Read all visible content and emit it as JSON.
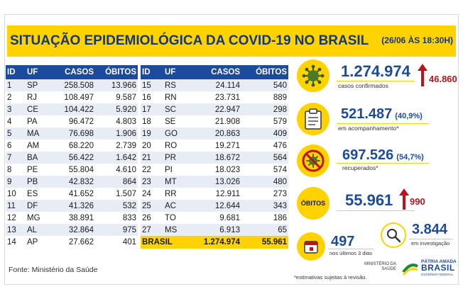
{
  "header": {
    "title": "SITUAÇÃO EPIDEMIOLÓGICA DA COVID-19 NO BRASIL",
    "date": "(26/06 ÀS 18:30H)"
  },
  "table": {
    "columns": [
      "ID",
      "UF",
      "CASOS",
      "ÓBITOS"
    ],
    "rows_left": [
      [
        "1",
        "SP",
        "258.508",
        "13.966"
      ],
      [
        "2",
        "RJ",
        "108.497",
        "9.587"
      ],
      [
        "3",
        "CE",
        "104.422",
        "5.920"
      ],
      [
        "4",
        "PA",
        "96.472",
        "4.803"
      ],
      [
        "5",
        "MA",
        "76.698",
        "1.906"
      ],
      [
        "6",
        "AM",
        "68.220",
        "2.739"
      ],
      [
        "7",
        "BA",
        "56.422",
        "1.642"
      ],
      [
        "8",
        "PE",
        "55.804",
        "4.610"
      ],
      [
        "9",
        "PB",
        "42.832",
        "864"
      ],
      [
        "10",
        "ES",
        "41.652",
        "1.507"
      ],
      [
        "11",
        "DF",
        "41.326",
        "532"
      ],
      [
        "12",
        "MG",
        "38.891",
        "833"
      ],
      [
        "13",
        "AL",
        "32.864",
        "975"
      ],
      [
        "14",
        "AP",
        "27.662",
        "401"
      ]
    ],
    "rows_right": [
      [
        "15",
        "RS",
        "24.114",
        "540"
      ],
      [
        "16",
        "RN",
        "23.731",
        "889"
      ],
      [
        "17",
        "SC",
        "22.947",
        "298"
      ],
      [
        "18",
        "SE",
        "21.908",
        "579"
      ],
      [
        "19",
        "GO",
        "20.863",
        "409"
      ],
      [
        "20",
        "RO",
        "19.271",
        "476"
      ],
      [
        "21",
        "PR",
        "18.672",
        "564"
      ],
      [
        "22",
        "PI",
        "18.023",
        "574"
      ],
      [
        "23",
        "MT",
        "13.026",
        "480"
      ],
      [
        "24",
        "RR",
        "12.911",
        "273"
      ],
      [
        "25",
        "AC",
        "12.644",
        "343"
      ],
      [
        "26",
        "TO",
        "9.681",
        "186"
      ],
      [
        "27",
        "MS",
        "6.913",
        "65"
      ]
    ],
    "total": {
      "label": "BRASIL",
      "cases": "1.274.974",
      "deaths": "55.961"
    }
  },
  "source": "Fonte: Ministério da Saúde",
  "stats": {
    "confirmed": {
      "value": "1.274.974",
      "label": "casos confirmados",
      "delta": "46.860"
    },
    "monitoring": {
      "value": "521.487",
      "pct": "(40,9%)",
      "label": "em acompanhamento*"
    },
    "recovered": {
      "value": "697.526",
      "pct": "(54,7%)",
      "label": "recuperados*"
    },
    "deaths": {
      "badge": "ÓBITOS",
      "value": "55.961",
      "delta": "990"
    },
    "recent_deaths": {
      "value": "497",
      "label": "nos últimos 3 dias"
    },
    "investigation": {
      "value": "3.844",
      "label": "em investigação"
    }
  },
  "footnote": "*estimativas sujeitas à revisão.",
  "ministry": {
    "line1": "MINISTÉRIO DA",
    "line2": "SAÚDE"
  },
  "gov_logo": {
    "line1": "PÁTRIA AMADA",
    "line2": "BRASIL",
    "line3": "GOVERNO FEDERAL"
  },
  "colors": {
    "yellow": "#ffd200",
    "blue": "#1c4a9c",
    "navy": "#13377a",
    "red": "#c0121b",
    "row_alt": "#e8ecf4"
  }
}
